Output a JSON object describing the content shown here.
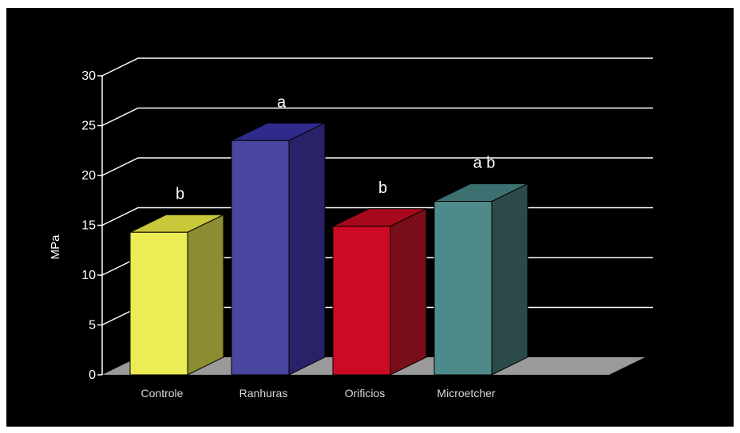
{
  "chart_data": {
    "type": "bar",
    "title": "",
    "xlabel": "",
    "ylabel": "MPa",
    "ylim": [
      0,
      30
    ],
    "yticks": [
      0,
      5,
      10,
      15,
      20,
      25,
      30
    ],
    "grid": true,
    "style": "3d",
    "categories": [
      "Controle",
      "Ranhuras",
      "Orificios",
      "Microetcher"
    ],
    "values": [
      14.3,
      23.5,
      14.9,
      17.4
    ],
    "annotations": [
      "b",
      "a",
      "b",
      "a b"
    ],
    "colors": {
      "front": [
        "#ecec55",
        "#4a46a0",
        "#cc0a24",
        "#4f8a8a"
      ],
      "top": [
        "#c9c93a",
        "#2f2a8c",
        "#a8081c",
        "#3c7070"
      ],
      "side": [
        "#8c8c30",
        "#2a2268",
        "#7a0e1a",
        "#2c4a4a"
      ]
    }
  }
}
